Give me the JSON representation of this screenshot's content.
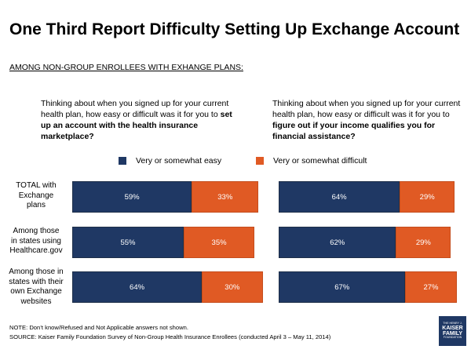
{
  "title": "One Third Report Difficulty Setting Up Exchange Account",
  "subtitle": "AMONG NON-GROUP ENROLLEES WITH EXHANGE PLANS:",
  "questions": {
    "left": {
      "prefix": "Thinking about when you signed up for your current health plan, how easy or difficult was it for you to ",
      "bold": "set up an account with the health insurance marketplace?"
    },
    "right": {
      "prefix": "Thinking about when you signed up for your current health plan, how easy or difficult was it for you to ",
      "bold": "figure out if your income qualifies you for financial assistance?"
    }
  },
  "legend": {
    "easy": "Very or somewhat easy",
    "difficult": "Very or somewhat difficult"
  },
  "colors": {
    "easy": "#1f3864",
    "difficult": "#e05a24"
  },
  "chart_data": [
    {
      "type": "bar",
      "orientation": "horizontal",
      "stacked": true,
      "title": "set up an account with the health insurance marketplace",
      "categories": [
        "TOTAL with Exchange plans",
        "Among those in states using Healthcare.gov",
        "Among those in states with their own Exchange websites"
      ],
      "series": [
        {
          "name": "Very or somewhat easy",
          "values": [
            59,
            55,
            64
          ]
        },
        {
          "name": "Very or somewhat difficult",
          "values": [
            33,
            35,
            30
          ]
        }
      ],
      "labels": {
        "easy": [
          "59%",
          "55%",
          "64%"
        ],
        "difficult": [
          "33%",
          "35%",
          "30%"
        ]
      },
      "xlim": [
        0,
        100
      ],
      "unit": "%"
    },
    {
      "type": "bar",
      "orientation": "horizontal",
      "stacked": true,
      "title": "figure out if your income qualifies you for financial assistance",
      "categories": [
        "TOTAL with Exchange plans",
        "Among those in states using Healthcare.gov",
        "Among those in states with their own Exchange websites"
      ],
      "series": [
        {
          "name": "Very or somewhat easy",
          "values": [
            64,
            62,
            67
          ]
        },
        {
          "name": "Very or somewhat difficult",
          "values": [
            29,
            29,
            27
          ]
        }
      ],
      "labels": {
        "easy": [
          "64%",
          "62%",
          "67%"
        ],
        "difficult": [
          "29%",
          "29%",
          "27%"
        ]
      },
      "xlim": [
        0,
        100
      ],
      "unit": "%"
    }
  ],
  "rows": [
    {
      "label_lines": [
        "TOTAL with",
        "Exchange",
        "plans"
      ]
    },
    {
      "label_lines": [
        "Among those",
        "in states using",
        "Healthcare.gov"
      ]
    },
    {
      "label_lines": [
        "Among those in",
        "states with their",
        "own Exchange",
        "websites"
      ]
    }
  ],
  "notes": {
    "note": "NOTE: Don’t know/Refused and Not Applicable answers not shown.",
    "source": "SOURCE: Kaiser Family Foundation Survey of Non-Group Health Insurance Enrollees (conducted April 3 – May 11, 2014)"
  },
  "logo": {
    "line1": "THE HENRY J.",
    "line2": "KAISER",
    "line3": "FAMILY",
    "line4": "FOUNDATION"
  }
}
